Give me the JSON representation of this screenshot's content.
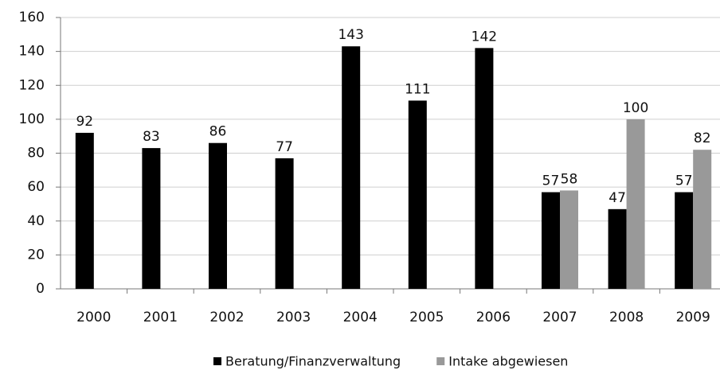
{
  "chart_data": {
    "type": "bar",
    "categories": [
      "2000",
      "2001",
      "2002",
      "2003",
      "2004",
      "2005",
      "2006",
      "2007",
      "2008",
      "2009"
    ],
    "series": [
      {
        "name": "Beratung/Finanzverwaltung",
        "color": "#000000",
        "values": [
          92,
          83,
          86,
          77,
          143,
          111,
          142,
          57,
          47,
          57
        ]
      },
      {
        "name": "Intake abgewiesen",
        "color": "#999999",
        "values": [
          null,
          null,
          null,
          null,
          null,
          null,
          null,
          58,
          100,
          82
        ]
      }
    ],
    "ylim": [
      0,
      160
    ],
    "yticks": [
      0,
      20,
      40,
      60,
      80,
      100,
      120,
      140,
      160
    ],
    "grid": true,
    "legend": "bottom"
  }
}
